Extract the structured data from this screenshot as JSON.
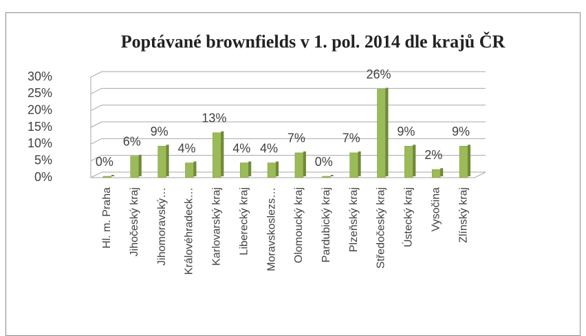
{
  "chart_data": {
    "type": "bar",
    "title": "Poptávané brownfields v 1. pol. 2014 dle krajů ČR",
    "categories": [
      "Hl. m. Praha",
      "Jihočeský kraj",
      "Jihomoravský…",
      "Královéhradeck…",
      "Karlovarský kraj",
      "Liberecký kraj",
      "Moravskoslezs…",
      "Olomoucký kraj",
      "Pardubický kraj",
      "Plzeňský kraj",
      "Středočeský kraj",
      "Ústecký kraj",
      "Vysočina",
      "Zlínský kraj"
    ],
    "values": [
      0,
      6,
      9,
      4,
      13,
      4,
      4,
      7,
      0,
      7,
      26,
      9,
      2,
      9
    ],
    "value_labels": [
      "0%",
      "6%",
      "9%",
      "4%",
      "13%",
      "4%",
      "4%",
      "7%",
      "0%",
      "7%",
      "26%",
      "9%",
      "2%",
      "9%"
    ],
    "color": "#9bbb59",
    "ylim": [
      0,
      30
    ],
    "yticks": [
      {
        "value": 0,
        "label": "0%"
      },
      {
        "value": 5,
        "label": "5%"
      },
      {
        "value": 10,
        "label": "10%"
      },
      {
        "value": 15,
        "label": "15%"
      },
      {
        "value": 20,
        "label": "20%"
      },
      {
        "value": 25,
        "label": "25%"
      },
      {
        "value": 30,
        "label": "30%"
      }
    ],
    "grid": true
  }
}
